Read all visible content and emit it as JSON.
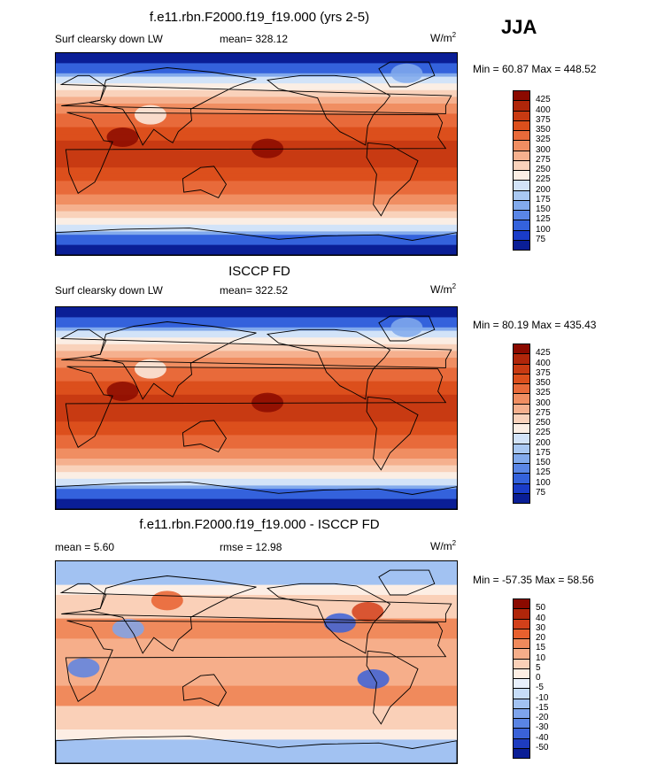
{
  "season": "JJA",
  "panels": [
    {
      "title": "f.e11.rbn.F2000.f19_f19.000 (yrs 2-5)",
      "left": "Surf clearsky down LW",
      "center": "mean= 328.12",
      "units_base": "W/m",
      "units_exp": "2",
      "minmax": "Min =  60.87 Max = 448.52",
      "kind": "abs"
    },
    {
      "title": "ISCCP FD",
      "left": "Surf clearsky down LW",
      "center": "mean= 322.52",
      "units_base": "W/m",
      "units_exp": "2",
      "minmax": "Min =  80.19 Max = 435.43",
      "kind": "abs"
    },
    {
      "title": "f.e11.rbn.F2000.f19_f19.000 - ISCCP FD",
      "left": "mean =   5.60",
      "center": "rmse =  12.98",
      "units_base": "W/m",
      "units_exp": "2",
      "minmax": "Min = -57.35 Max =  58.56",
      "kind": "diff"
    }
  ],
  "colorbars": {
    "abs": {
      "labels": [
        "425",
        "400",
        "375",
        "350",
        "325",
        "300",
        "275",
        "250",
        "225",
        "200",
        "175",
        "150",
        "125",
        "100",
        "75"
      ],
      "colors": [
        "#8b0a00",
        "#b0260a",
        "#c83a12",
        "#dc4f1c",
        "#e86a3a",
        "#f08e62",
        "#f5b08e",
        "#f9d2bb",
        "#fbeee4",
        "#d2e3f8",
        "#a9c8f2",
        "#82aaec",
        "#5a86e6",
        "#3462dc",
        "#1a3cc8",
        "#0a1e96"
      ]
    },
    "diff": {
      "labels": [
        "50",
        "40",
        "30",
        "20",
        "15",
        "10",
        "5",
        "0",
        "-5",
        "-10",
        "-15",
        "-20",
        "-30",
        "-40",
        "-50"
      ],
      "colors": [
        "#8b0a00",
        "#b0260a",
        "#d2401a",
        "#e8602e",
        "#f08a5c",
        "#f6ae8a",
        "#fad0b8",
        "#fdeee4",
        "#e8f0fc",
        "#c6dcf8",
        "#a2c2f2",
        "#7ea4ec",
        "#5a84e4",
        "#3a62d8",
        "#1e3cc0",
        "#0a1e96"
      ]
    }
  }
}
